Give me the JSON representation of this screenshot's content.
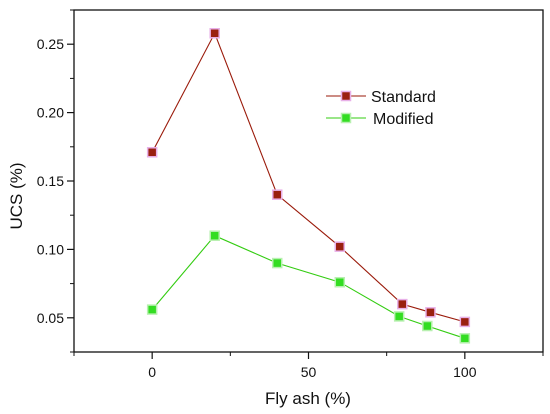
{
  "chart_data": {
    "type": "line",
    "xlabel": "Fly ash (%)",
    "ylabel": "UCS (%)",
    "xlim": [
      -25,
      125
    ],
    "ylim": [
      0.025,
      0.275
    ],
    "x_ticks": [
      "0",
      "50",
      "100"
    ],
    "y_ticks": [
      "0.05",
      "0.10",
      "0.15",
      "0.20",
      "0.25"
    ],
    "legend_position": "top-right",
    "series": [
      {
        "name": "Standard",
        "color": "#9a1a0a",
        "marker_color": "#9a2010",
        "x": [
          0,
          20,
          40,
          60,
          80,
          89,
          100
        ],
        "y": [
          0.171,
          0.258,
          0.14,
          0.102,
          0.06,
          0.054,
          0.047
        ]
      },
      {
        "name": "Modified",
        "color": "#33cc11",
        "marker_color": "#33dd22",
        "x": [
          0,
          20,
          40,
          60,
          79,
          88,
          100
        ],
        "y": [
          0.056,
          0.11,
          0.09,
          0.076,
          0.051,
          0.044,
          0.035
        ]
      }
    ]
  }
}
